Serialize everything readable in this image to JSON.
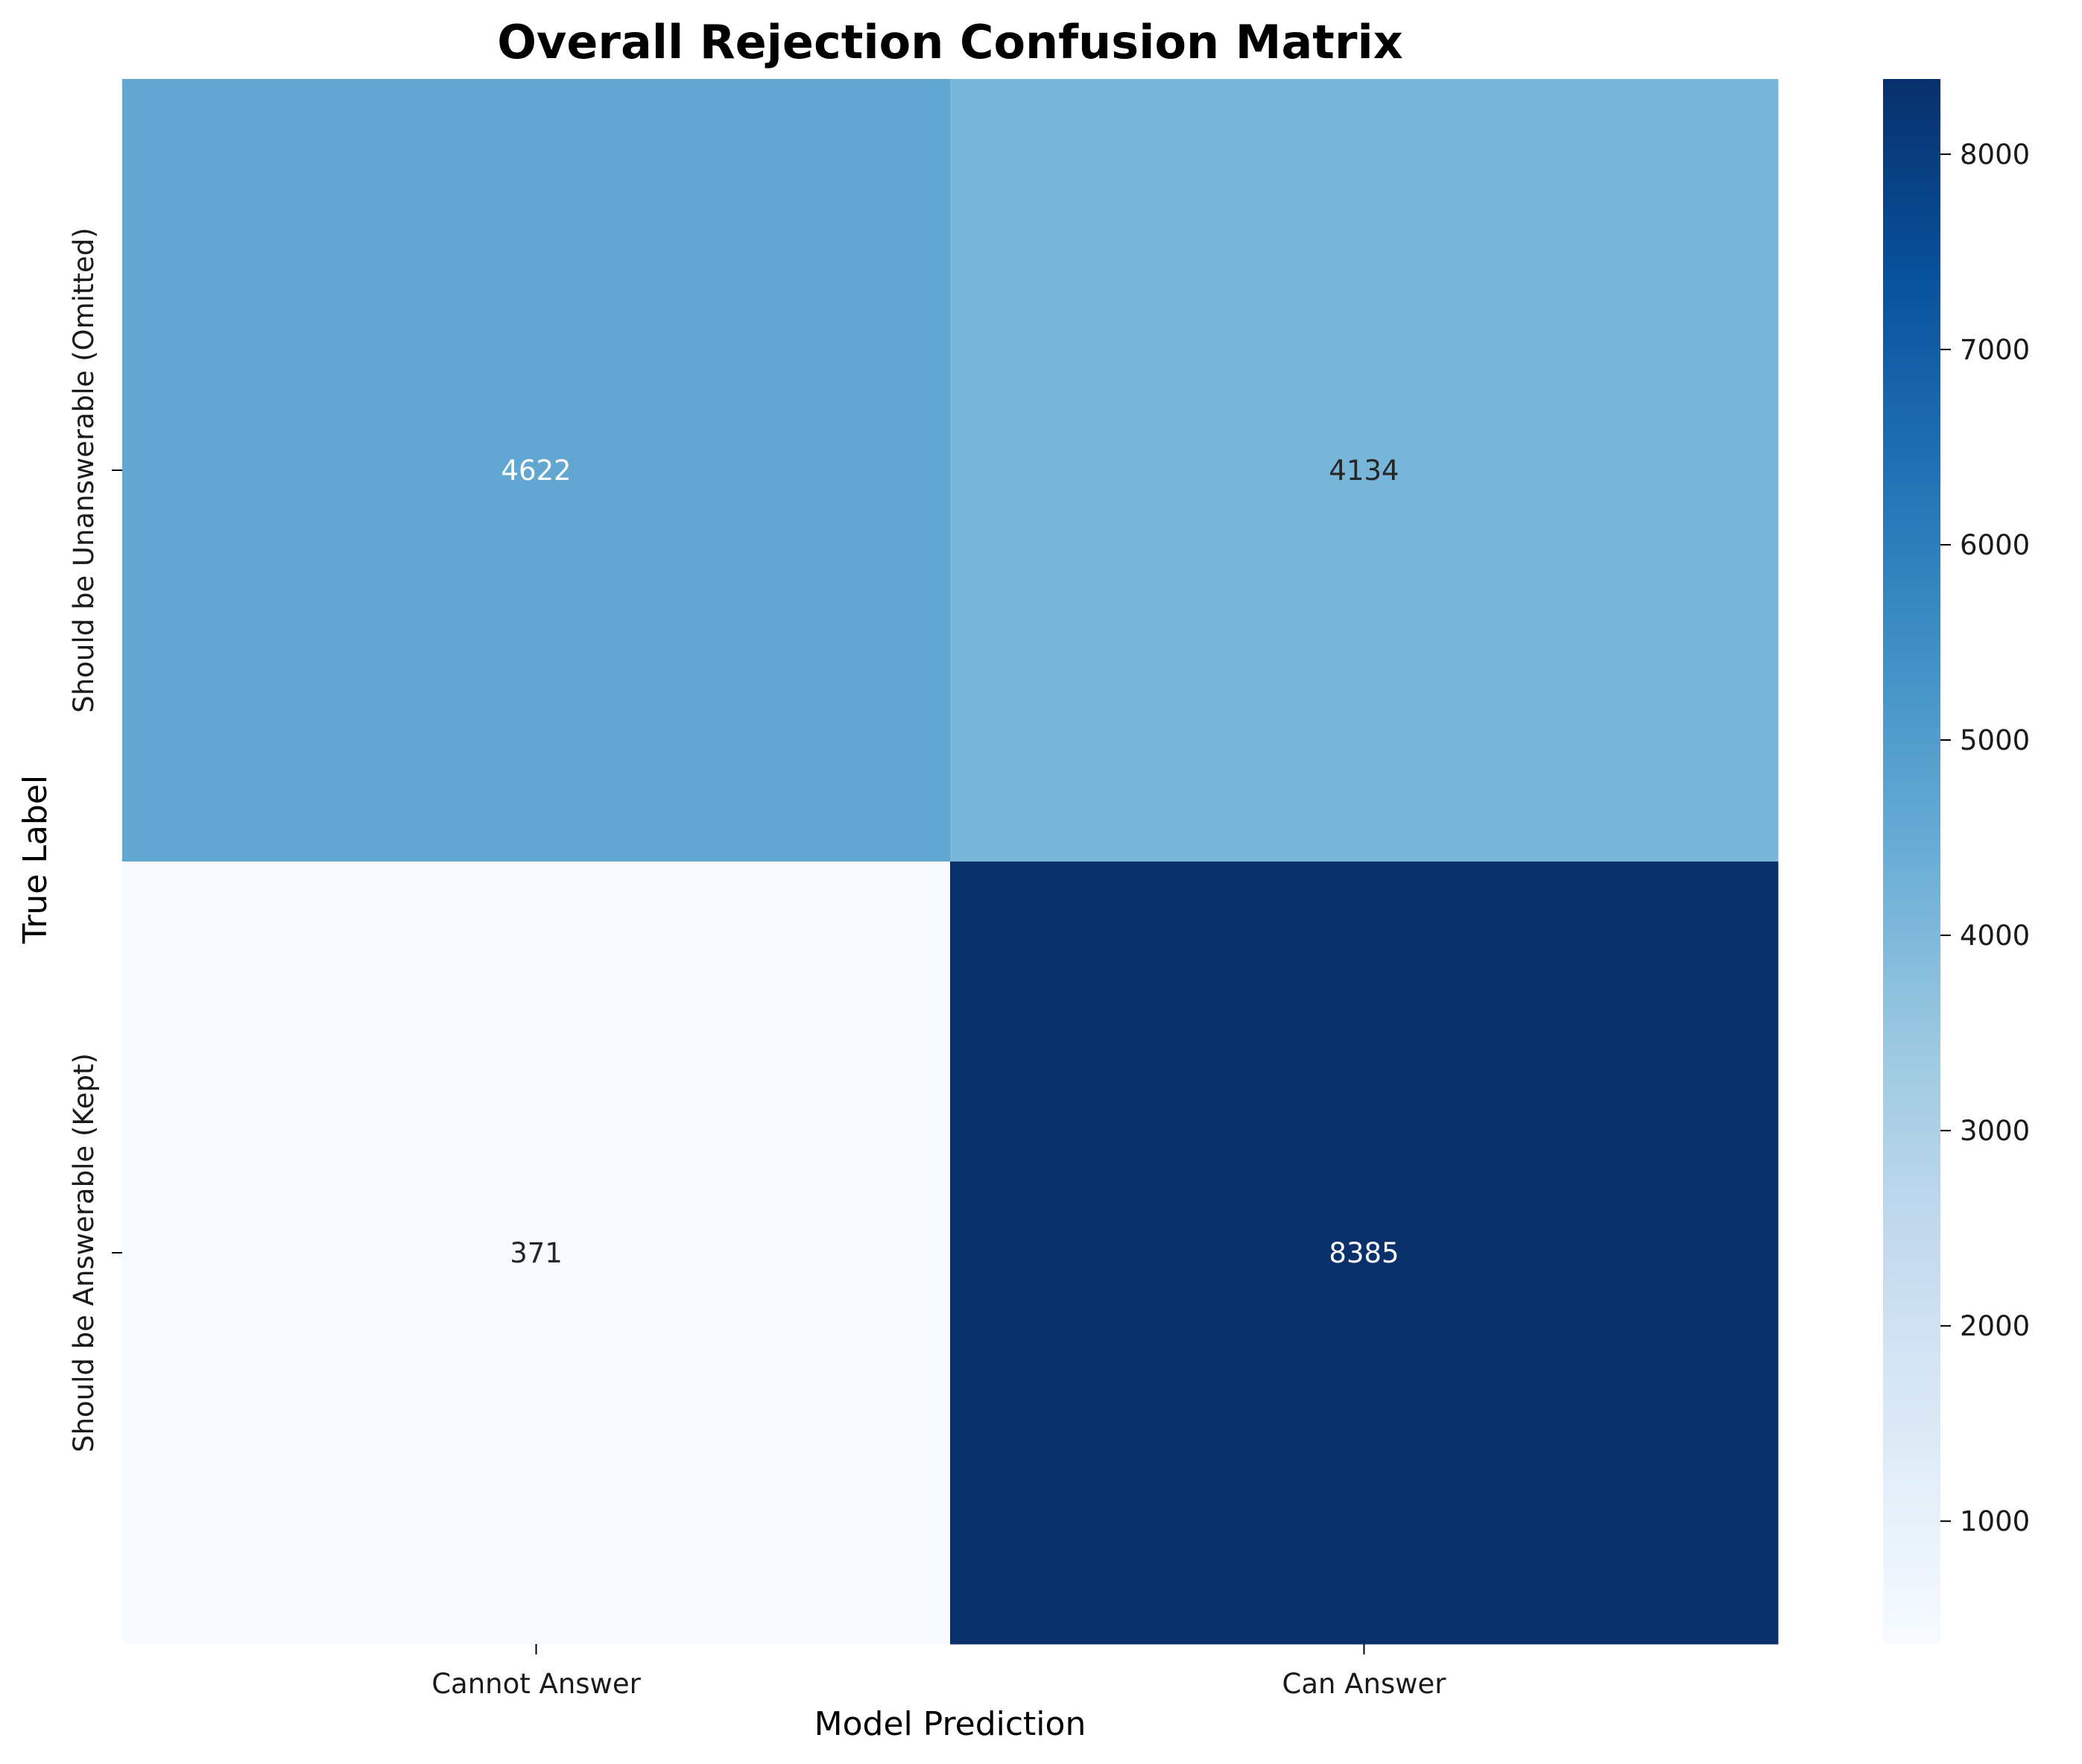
{
  "chart_data": {
    "type": "heatmap",
    "title": "Overall Rejection Confusion Matrix",
    "xlabel": "Model Prediction",
    "ylabel": "True Label",
    "x_categories": [
      "Cannot Answer",
      "Can Answer"
    ],
    "y_categories": [
      "Should be Unanswerable (Omitted)",
      "Should be Answerable (Kept)"
    ],
    "values": [
      [
        4622,
        4134
      ],
      [
        371,
        8385
      ]
    ],
    "colormap": "Blues",
    "colorbar": {
      "min": 371,
      "max": 8385,
      "ticks": [
        1000,
        2000,
        3000,
        4000,
        5000,
        6000,
        7000,
        8000
      ]
    }
  },
  "colors": {
    "colormap_stops": [
      "#f7fbff",
      "#deebf7",
      "#c6dbef",
      "#9ecae1",
      "#6baed6",
      "#4292c6",
      "#2171b5",
      "#08519c",
      "#08306b"
    ],
    "cell_text_dark": "#262626",
    "cell_text_light": "#ffffff"
  }
}
